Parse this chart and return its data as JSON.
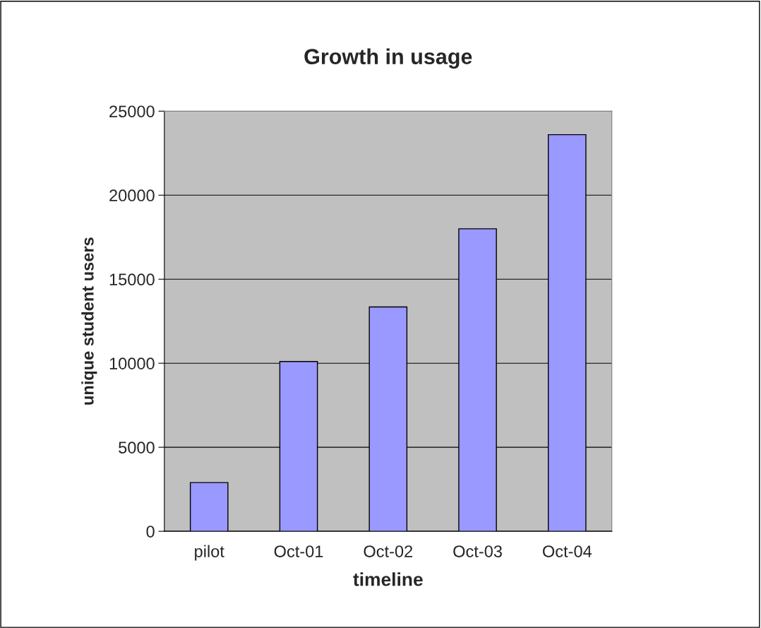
{
  "chart_data": {
    "type": "bar",
    "title": "Growth in usage",
    "xlabel": "timeline",
    "ylabel": "unique student users",
    "categories": [
      "pilot",
      "Oct-01",
      "Oct-02",
      "Oct-03",
      "Oct-04"
    ],
    "values": [
      2900,
      10100,
      13350,
      18000,
      23600
    ],
    "color": "#9999ff",
    "ylim": [
      0,
      25000
    ],
    "yticks": [
      0,
      5000,
      10000,
      15000,
      20000,
      25000
    ],
    "grid": "y",
    "legend": false
  }
}
